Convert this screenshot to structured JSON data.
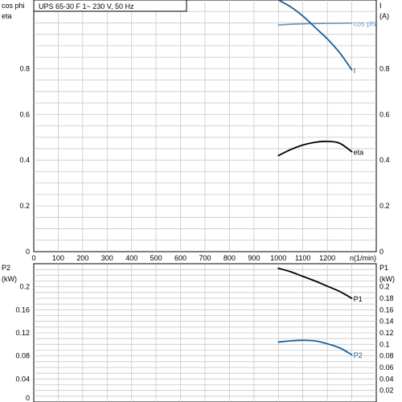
{
  "chart_data": [
    {
      "type": "line",
      "title": "UPS 65-30 F    1~ 230 V, 50 Hz",
      "xlabel": "n(1/min)",
      "ylabel_left": [
        "cos phi",
        "eta"
      ],
      "ylabel_right": [
        "I",
        "(A)"
      ],
      "xlim": [
        0,
        1400
      ],
      "ylim_left": [
        0,
        1.1
      ],
      "ylim_right": [
        0,
        1.1
      ],
      "grid": true,
      "x_ticks": [
        "0",
        "100",
        "200",
        "300",
        "400",
        "500",
        "600",
        "700",
        "800",
        "900",
        "1000",
        "1100",
        "1200",
        "n(1/min)"
      ],
      "y_ticks_left": [
        "0",
        "0.2",
        "0.4",
        "0.6",
        "0.8"
      ],
      "y_ticks_right": [
        "0",
        "0.2",
        "0.4",
        "0.6",
        "0.8"
      ],
      "y_labels_left_top": [
        "cos phi",
        "eta"
      ],
      "y_labels_right_top": [
        "I",
        "(A)"
      ],
      "series": [
        {
          "name": "cos phi",
          "axis": "left",
          "color": "#6f9bc4",
          "x": [
            1000,
            1100,
            1200,
            1300
          ],
          "y": [
            0.991,
            0.996,
            0.998,
            0.999
          ]
        },
        {
          "name": "I",
          "axis": "right",
          "color": "#1c5f96",
          "x": [
            1000,
            1050,
            1100,
            1150,
            1200,
            1250,
            1300
          ],
          "y": [
            1.1,
            1.07,
            1.03,
            0.98,
            0.93,
            0.87,
            0.795
          ]
        },
        {
          "name": "eta",
          "axis": "left",
          "color": "#000000",
          "x": [
            1000,
            1050,
            1100,
            1150,
            1200,
            1250,
            1300
          ],
          "y": [
            0.42,
            0.446,
            0.466,
            0.478,
            0.482,
            0.474,
            0.437
          ]
        }
      ]
    },
    {
      "type": "line",
      "xlim": [
        0,
        1400
      ],
      "ylim_left": [
        0,
        0.24
      ],
      "ylim_right": [
        0,
        0.24
      ],
      "ylabel_left": [
        "P2",
        "(kW)"
      ],
      "ylabel_right": [
        "P1",
        "(kW)"
      ],
      "grid": true,
      "y_ticks_left": [
        "0.04",
        "0.08",
        "0.12",
        "0.16",
        "0.2"
      ],
      "y_ticks_right": [
        "0.02",
        "0.04",
        "0.06",
        "0.08",
        "0.1",
        "0.12",
        "0.14",
        "0.16",
        "0.18",
        "0.2"
      ],
      "series": [
        {
          "name": "P1",
          "axis": "right",
          "color": "#000000",
          "x": [
            1000,
            1050,
            1100,
            1150,
            1200,
            1250,
            1300
          ],
          "y": [
            0.232,
            0.226,
            0.218,
            0.21,
            0.201,
            0.192,
            0.18
          ]
        },
        {
          "name": "P2",
          "axis": "left",
          "color": "#1c5f96",
          "x": [
            1000,
            1050,
            1100,
            1150,
            1200,
            1250,
            1300
          ],
          "y": [
            0.104,
            0.106,
            0.107,
            0.106,
            0.101,
            0.094,
            0.082
          ]
        }
      ]
    }
  ]
}
